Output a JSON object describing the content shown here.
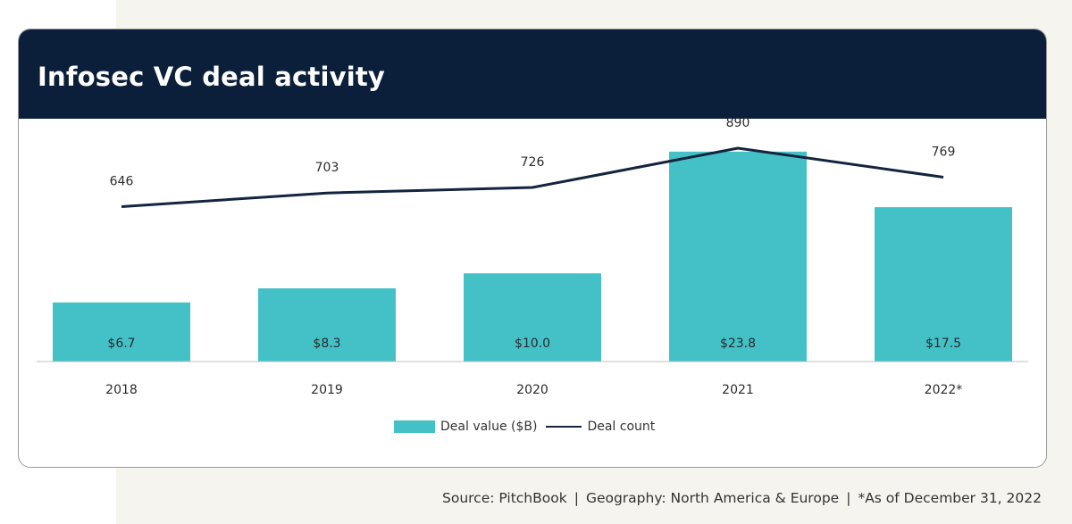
{
  "title": "Infosec VC deal activity",
  "colors": {
    "bar": "#43c1c7",
    "line": "#14243f",
    "header": "#0b1f3a"
  },
  "chart_data": {
    "type": "bar",
    "categories": [
      "2018",
      "2019",
      "2020",
      "2021",
      "2022*"
    ],
    "series": [
      {
        "name": "Deal value ($B)",
        "kind": "bar",
        "values": [
          6.7,
          8.3,
          10.0,
          23.8,
          17.5
        ],
        "labels": [
          "$6.7",
          "$8.3",
          "$10.0",
          "$23.8",
          "$17.5"
        ]
      },
      {
        "name": "Deal count",
        "kind": "line",
        "values": [
          646,
          703,
          726,
          890,
          769
        ],
        "labels": [
          "646",
          "703",
          "726",
          "890",
          "769"
        ]
      }
    ],
    "bar_ylim": [
      0,
      25
    ],
    "line_ylim": [
      0,
      1050
    ]
  },
  "legend": {
    "bar_label": "Deal value ($B)",
    "line_label": "Deal count"
  },
  "source": {
    "part1": "Source: PitchBook",
    "part2": "Geography: North America & Europe",
    "part3": "*As of December 31, 2022",
    "sep": "|"
  }
}
